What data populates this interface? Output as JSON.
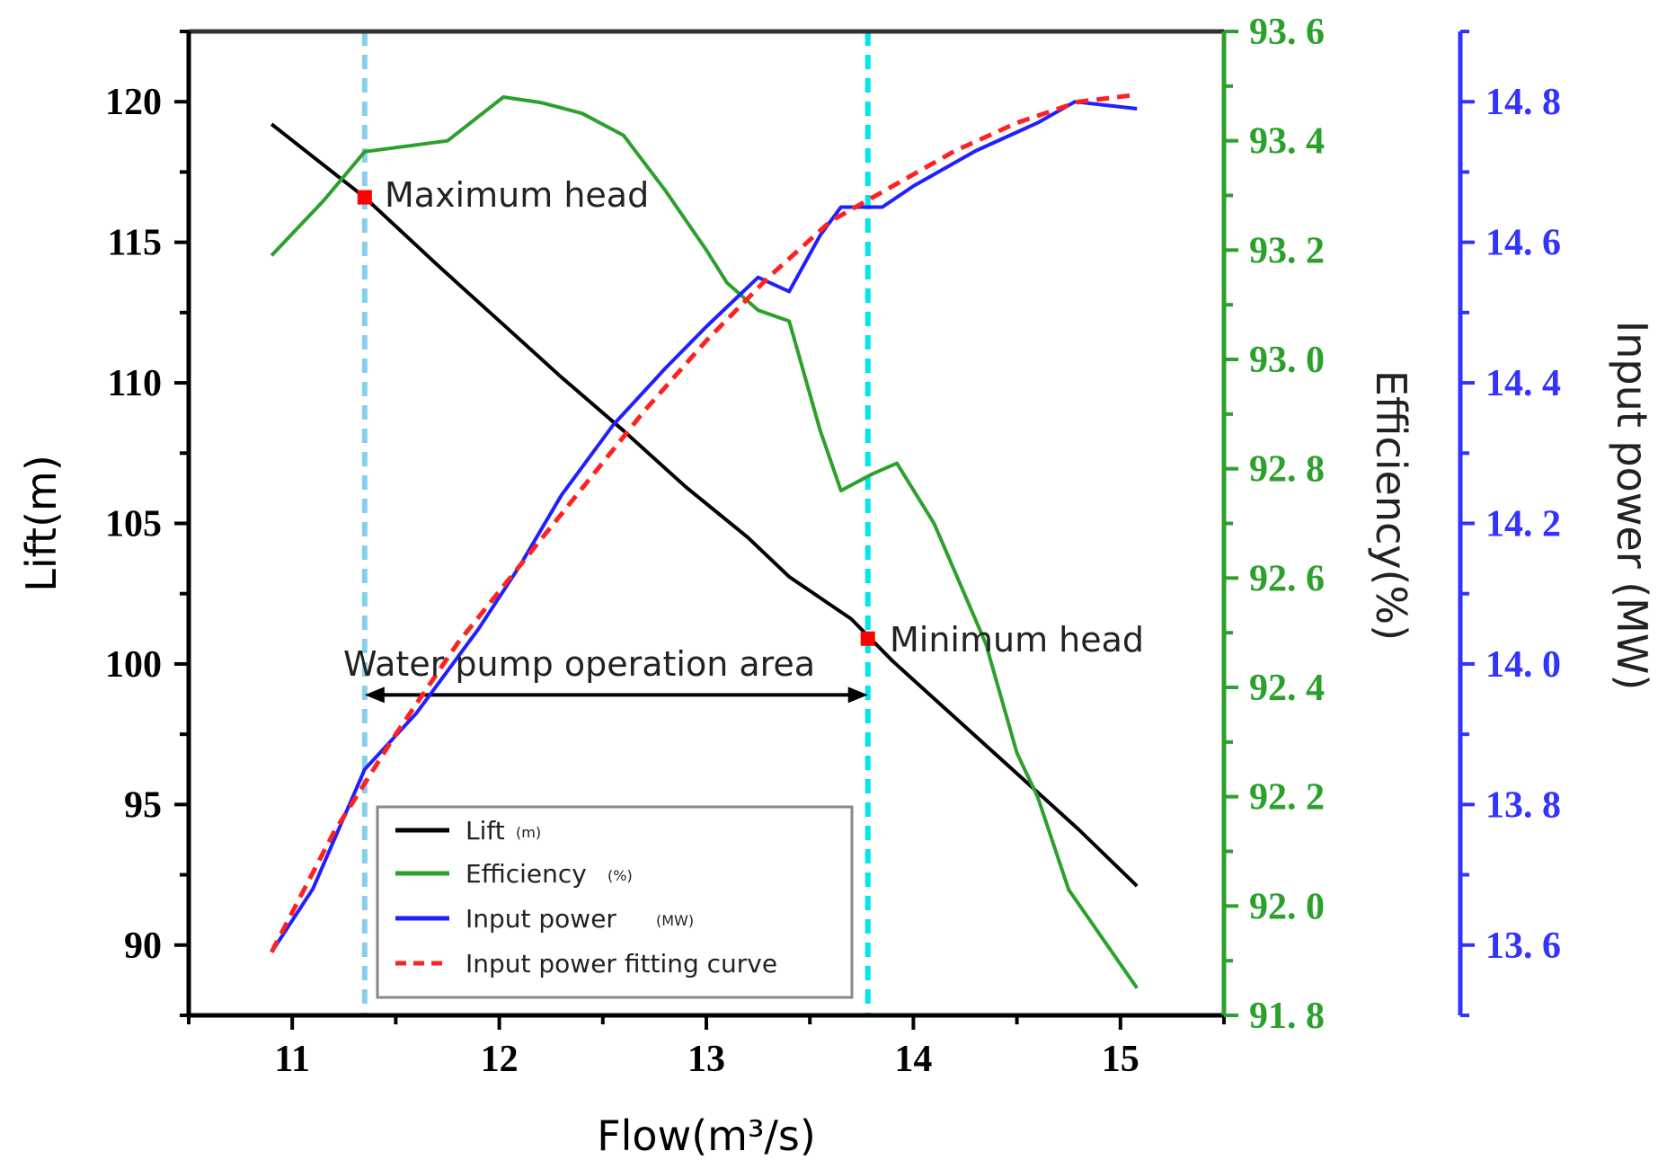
{
  "chart_data": {
    "type": "line",
    "xlabel": "Flow",
    "xlabel_unit": "(m³/s)",
    "xlim": [
      10.5,
      15.5
    ],
    "x_ticks": [
      "11",
      "12",
      "13",
      "14",
      "15"
    ],
    "axes": {
      "lift": {
        "label": "Lift(m)",
        "ylim": [
          87.5,
          122.5
        ],
        "ticks": [
          "90",
          "95",
          "100",
          "105",
          "110",
          "115",
          "120"
        ],
        "color": "#000000"
      },
      "efficiency": {
        "label": "Efficiency(%)",
        "ylim": [
          91.8,
          93.6
        ],
        "ticks": [
          "91. 8",
          "92. 0",
          "92. 2",
          "92. 4",
          "92. 6",
          "92. 8",
          "93. 0",
          "93. 2",
          "93. 4",
          "93. 6"
        ],
        "color": "#2ca02c"
      },
      "power": {
        "label": "Input power (MW)",
        "ylim": [
          13.5,
          14.9
        ],
        "ticks": [
          "13. 6",
          "13. 8",
          "14. 0",
          "14. 2",
          "14. 4",
          "14. 6",
          "14. 8"
        ],
        "color": "#3333ff"
      }
    },
    "series": [
      {
        "name": "Lift",
        "unit": "(m)",
        "axis": "lift",
        "color": "#000000",
        "dash": false,
        "x": [
          10.9,
          11.35,
          11.7,
          12.0,
          12.3,
          12.6,
          12.9,
          13.2,
          13.4,
          13.7,
          13.9,
          14.2,
          14.5,
          14.8,
          15.08
        ],
        "y": [
          119.2,
          116.6,
          114.2,
          112.2,
          110.2,
          108.3,
          106.3,
          104.5,
          103.1,
          101.6,
          100.1,
          98.1,
          96.1,
          94.1,
          92.1
        ]
      },
      {
        "name": "Efficiency",
        "unit": "(%)",
        "axis": "efficiency",
        "color": "#2ca02c",
        "dash": false,
        "x": [
          10.9,
          11.15,
          11.35,
          11.75,
          12.02,
          12.2,
          12.4,
          12.6,
          12.8,
          13.0,
          13.1,
          13.25,
          13.4,
          13.55,
          13.65,
          13.8,
          13.92,
          14.1,
          14.35,
          14.5,
          14.6,
          14.75,
          15.08
        ],
        "y": [
          93.19,
          93.29,
          93.38,
          93.4,
          93.48,
          93.47,
          93.45,
          93.41,
          93.31,
          93.2,
          93.14,
          93.09,
          93.07,
          92.87,
          92.76,
          92.79,
          92.81,
          92.7,
          92.48,
          92.28,
          92.2,
          92.03,
          91.85
        ]
      },
      {
        "name": "Input power",
        "unit": "(MW)",
        "axis": "power",
        "color": "#2020ff",
        "dash": false,
        "x": [
          10.9,
          11.1,
          11.35,
          11.6,
          11.9,
          12.1,
          12.3,
          12.55,
          12.8,
          13.0,
          13.25,
          13.4,
          13.55,
          13.65,
          13.85,
          14.0,
          14.3,
          14.6,
          14.78,
          15.08
        ],
        "y": [
          13.59,
          13.68,
          13.85,
          13.93,
          14.05,
          14.14,
          14.24,
          14.34,
          14.42,
          14.48,
          14.55,
          14.53,
          14.61,
          14.65,
          14.65,
          14.68,
          14.73,
          14.77,
          14.8,
          14.79
        ]
      },
      {
        "name": "Input power fitting curve",
        "unit": "",
        "axis": "power",
        "color": "#ff2020",
        "dash": true,
        "x": [
          10.9,
          11.2,
          11.5,
          11.8,
          12.1,
          12.4,
          12.7,
          13.0,
          13.3,
          13.6,
          13.9,
          14.2,
          14.5,
          14.8,
          15.08
        ],
        "y": [
          13.59,
          13.76,
          13.9,
          14.03,
          14.14,
          14.25,
          14.36,
          14.46,
          14.55,
          14.63,
          14.68,
          14.73,
          14.77,
          14.8,
          14.81
        ]
      }
    ],
    "vlines": [
      {
        "x": 11.35,
        "color": "#87ceeb"
      },
      {
        "x": 13.78,
        "color": "#00e5ee"
      }
    ],
    "markers": [
      {
        "label": "Maximum head",
        "x": 11.35,
        "y": 116.6,
        "axis": "lift",
        "color": "#ff0000"
      },
      {
        "label": "Minimum head",
        "x": 13.78,
        "y": 100.9,
        "axis": "lift",
        "color": "#ff0000"
      }
    ],
    "operation_area": {
      "label": "Water pump operation area",
      "x_start": 11.35,
      "x_end": 13.78,
      "y": 98.9,
      "axis": "lift"
    },
    "legend": {
      "position": "bottom-left inside"
    }
  }
}
